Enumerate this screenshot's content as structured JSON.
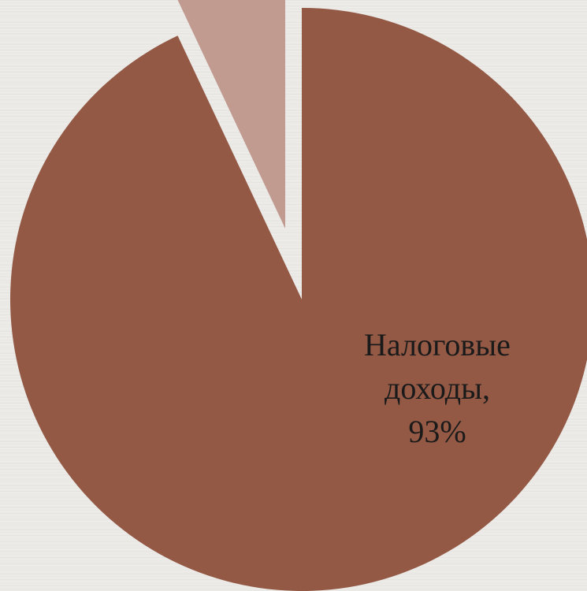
{
  "chart_data": {
    "type": "pie",
    "slices": [
      {
        "name": "Налоговые доходы",
        "value": 93,
        "color": "#935945",
        "label_lines": [
          "Налоговые",
          "доходы,",
          "93%"
        ]
      },
      {
        "name": "",
        "value": 7,
        "color": "#c19b90",
        "label_lines": []
      }
    ],
    "start_angle_deg": 0,
    "direction": "clockwise",
    "exploded": true,
    "legend": "none"
  }
}
